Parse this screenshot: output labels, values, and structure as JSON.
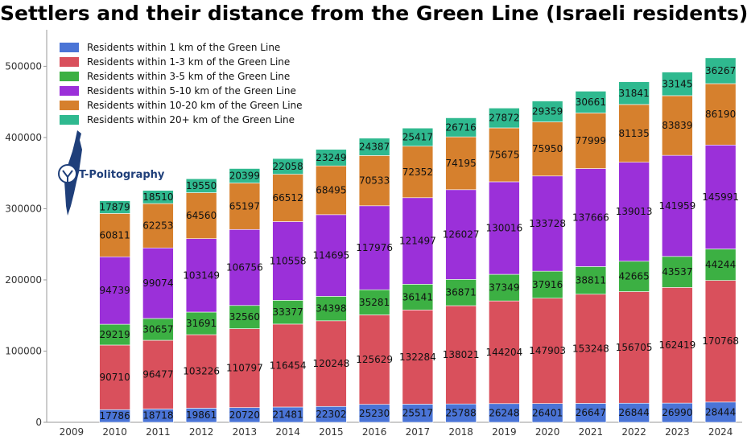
{
  "chart_data": {
    "type": "bar",
    "stacked": true,
    "title": "Settlers and their distance from the Green Line (Israeli residents)",
    "xlabel": "",
    "ylabel": "",
    "ylim": [
      0,
      540000
    ],
    "yticks": [
      0,
      100000,
      200000,
      300000,
      400000,
      500000
    ],
    "ytick_labels": [
      "0",
      "100000",
      "200000",
      "300000",
      "400000",
      "500000"
    ],
    "grid": false,
    "legend_position": "top-left",
    "categories": [
      "2009",
      "2010",
      "2011",
      "2012",
      "2013",
      "2014",
      "2015",
      "2016",
      "2017",
      "2018",
      "2019",
      "2020",
      "2021",
      "2022",
      "2023",
      "2024"
    ],
    "series": [
      {
        "name": "Residents within 1 km of the Green Line",
        "color": "#4a74d6",
        "values": [
          null,
          17786,
          18718,
          19861,
          20720,
          21481,
          22302,
          25230,
          25517,
          25788,
          26248,
          26401,
          26647,
          26844,
          26990,
          28444
        ]
      },
      {
        "name": "Residents within 1-3 km of the Green Line",
        "color": "#d9505c",
        "values": [
          null,
          90710,
          96477,
          103226,
          110797,
          116454,
          120248,
          125629,
          132284,
          138021,
          144204,
          147903,
          153248,
          156705,
          162419,
          170768
        ]
      },
      {
        "name": "Residents within 3-5 km of the Green Line",
        "color": "#3cb043",
        "values": [
          null,
          29219,
          30657,
          31691,
          32560,
          33377,
          34398,
          35281,
          36141,
          36871,
          37349,
          37916,
          38811,
          42665,
          43537,
          44244
        ]
      },
      {
        "name": "Residents within 5-10 km of the Green Line",
        "color": "#9b30d9",
        "values": [
          null,
          94739,
          99074,
          103149,
          106756,
          110558,
          114695,
          117976,
          121497,
          126027,
          130016,
          133728,
          137666,
          139013,
          141959,
          145991
        ]
      },
      {
        "name": "Residents within 10-20 km of the Green Line",
        "color": "#d6802d",
        "values": [
          null,
          60811,
          62253,
          64560,
          65197,
          66512,
          68495,
          70533,
          72352,
          74195,
          75675,
          75950,
          77999,
          81135,
          83839,
          86190
        ]
      },
      {
        "name": "Residents within 20+ km of the Green Line",
        "color": "#2fb98f",
        "values": [
          null,
          17879,
          18510,
          19550,
          20399,
          22058,
          23249,
          24387,
          25417,
          26716,
          27872,
          29359,
          30661,
          31841,
          33145,
          36267
        ]
      }
    ]
  },
  "logo": {
    "text": "T-Politography",
    "icon": "israel-map-icon"
  }
}
